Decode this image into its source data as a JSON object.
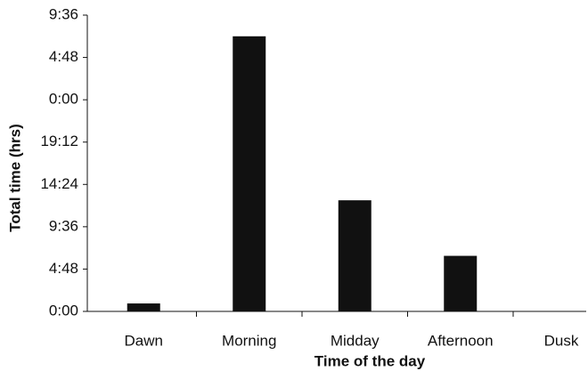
{
  "chart_data": {
    "type": "bar",
    "x_label": "Time of the day",
    "y_label": "Total time (hrs)",
    "categories": [
      "Dawn",
      "Morning",
      "Midday",
      "Afternoon",
      "Dusk"
    ],
    "values": [
      0.9,
      31.2,
      12.6,
      6.3,
      0
    ],
    "color": "#111111",
    "ylim": [
      0,
      33.6
    ],
    "yticks": [
      {
        "value": 0,
        "label": "0:00"
      },
      {
        "value": 4.8,
        "label": "4:48"
      },
      {
        "value": 9.6,
        "label": "9:36"
      },
      {
        "value": 14.4,
        "label": "14:24"
      },
      {
        "value": 19.2,
        "label": "19:12"
      },
      {
        "value": 24,
        "label": "0:00"
      },
      {
        "value": 28.8,
        "label": "4:48"
      },
      {
        "value": 33.6,
        "label": "9:36"
      }
    ],
    "grid": false
  }
}
